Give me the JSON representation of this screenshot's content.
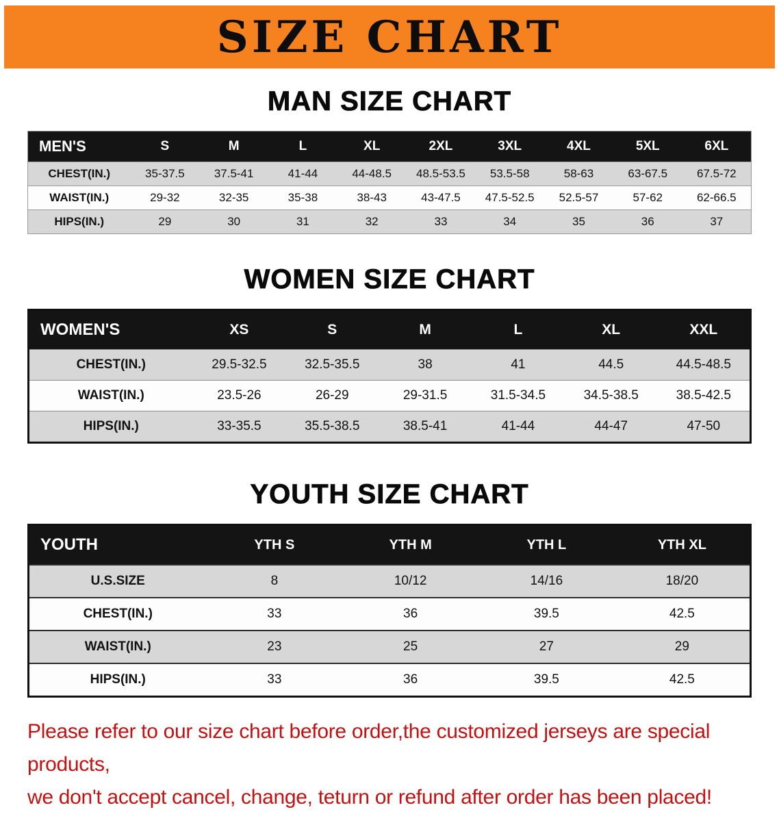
{
  "banner": {
    "title": "SIZE CHART",
    "bg_color": "#f5821f"
  },
  "sections": [
    {
      "heading": "MAN SIZE CHART",
      "table": {
        "header": [
          "MEN'S",
          "S",
          "M",
          "L",
          "XL",
          "2XL",
          "3XL",
          "4XL",
          "5XL",
          "6XL"
        ],
        "rows": [
          [
            "CHEST(IN.)",
            "35-37.5",
            "37.5-41",
            "41-44",
            "44-48.5",
            "48.5-53.5",
            "53.5-58",
            "58-63",
            "63-67.5",
            "67.5-72"
          ],
          [
            "WAIST(IN.)",
            "29-32",
            "32-35",
            "35-38",
            "38-43",
            "43-47.5",
            "47.5-52.5",
            "52.5-57",
            "57-62",
            "62-66.5"
          ],
          [
            "HIPS(IN.)",
            "29",
            "30",
            "31",
            "32",
            "33",
            "34",
            "35",
            "36",
            "37"
          ]
        ]
      }
    },
    {
      "heading": "WOMEN SIZE CHART",
      "table": {
        "header": [
          "WOMEN'S",
          "XS",
          "S",
          "M",
          "L",
          "XL",
          "XXL"
        ],
        "rows": [
          [
            "CHEST(IN.)",
            "29.5-32.5",
            "32.5-35.5",
            "38",
            "41",
            "44.5",
            "44.5-48.5"
          ],
          [
            "WAIST(IN.)",
            "23.5-26",
            "26-29",
            "29-31.5",
            "31.5-34.5",
            "34.5-38.5",
            "38.5-42.5"
          ],
          [
            "HIPS(IN.)",
            "33-35.5",
            "35.5-38.5",
            "38.5-41",
            "41-44",
            "44-47",
            "47-50"
          ]
        ]
      }
    },
    {
      "heading": "YOUTH SIZE CHART",
      "table": {
        "header": [
          "YOUTH",
          "YTH S",
          "YTH M",
          "YTH L",
          "YTH XL"
        ],
        "rows": [
          [
            "U.S.SIZE",
            "8",
            "10/12",
            "14/16",
            "18/20"
          ],
          [
            "CHEST(IN.)",
            "33",
            "36",
            "39.5",
            "42.5"
          ],
          [
            "WAIST(IN.)",
            "23",
            "25",
            "27",
            "29"
          ],
          [
            "HIPS(IN.)",
            "33",
            "36",
            "39.5",
            "42.5"
          ]
        ]
      }
    }
  ],
  "disclaimer": {
    "line1": "Please refer to our size chart before order,the customized jerseys are special products,",
    "line2": "we don't accept cancel, change, teturn or refund after order has been placed!"
  }
}
